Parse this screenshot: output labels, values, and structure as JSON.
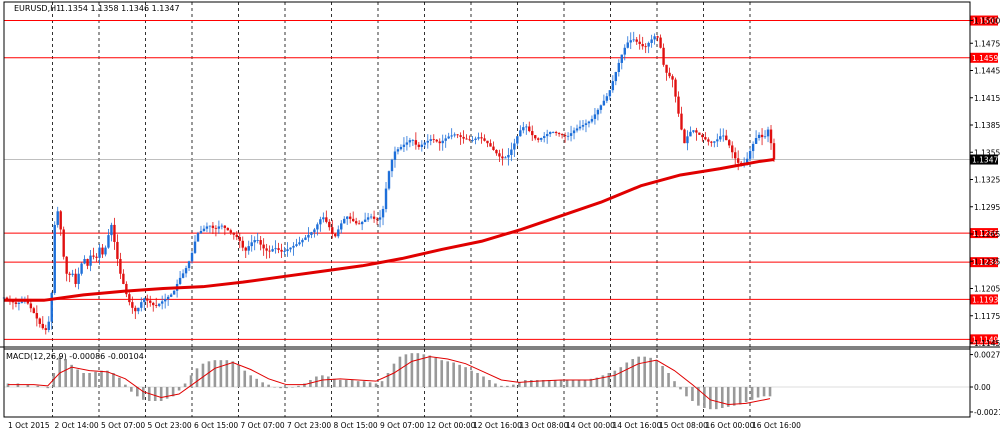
{
  "chart_data": [
    {
      "type": "candlestick",
      "title": "EURUSD,H1",
      "ohlc_label": "1.1354 1.1358 1.1346 1.1347",
      "ylim": [
        1.1145,
        1.1505
      ],
      "price_ticks": [
        "1.1500",
        "1.1475",
        "1.1445",
        "1.1415",
        "1.1385",
        "1.1355",
        "1.1325",
        "1.1295",
        "1.1265",
        "1.1235",
        "1.1205",
        "1.1175",
        "1.1145"
      ],
      "horizontal_levels": [
        "1.1500",
        "1.1459",
        "1.1266",
        "1.1234",
        "1.1193",
        "1.1149"
      ],
      "current_price": "1.1347",
      "x_labels": [
        "1 Oct 2015",
        "2 Oct 14:00",
        "5 Oct 07:00",
        "5 Oct 23:00",
        "6 Oct 15:00",
        "7 Oct 07:00",
        "7 Oct 23:00",
        "8 Oct 15:00",
        "9 Oct 07:00",
        "12 Oct 00:00",
        "12 Oct 16:00",
        "13 Oct 08:00",
        "14 Oct 00:00",
        "14 Oct 16:00",
        "15 Oct 08:00",
        "16 Oct 00:00",
        "16 Oct 16:00"
      ],
      "close_path": [
        [
          0,
          1.1195
        ],
        [
          12,
          1.1188
        ],
        [
          22,
          1.1192
        ],
        [
          30,
          1.1178
        ],
        [
          38,
          1.1162
        ],
        [
          44,
          1.1158
        ],
        [
          48,
          1.12
        ],
        [
          52,
          1.13
        ],
        [
          56,
          1.128
        ],
        [
          60,
          1.124
        ],
        [
          64,
          1.1215
        ],
        [
          68,
          1.1225
        ],
        [
          72,
          1.121
        ],
        [
          76,
          1.1225
        ],
        [
          80,
          1.124
        ],
        [
          84,
          1.123
        ],
        [
          88,
          1.1245
        ],
        [
          92,
          1.1235
        ],
        [
          96,
          1.125
        ],
        [
          100,
          1.124
        ],
        [
          104,
          1.126
        ],
        [
          108,
          1.1275
        ],
        [
          112,
          1.125
        ],
        [
          116,
          1.1225
        ],
        [
          120,
          1.121
        ],
        [
          124,
          1.1195
        ],
        [
          128,
          1.1185
        ],
        [
          132,
          1.118
        ],
        [
          136,
          1.1185
        ],
        [
          140,
          1.1195
        ],
        [
          146,
          1.119
        ],
        [
          152,
          1.1185
        ],
        [
          158,
          1.119
        ],
        [
          164,
          1.1195
        ],
        [
          170,
          1.12
        ],
        [
          176,
          1.1215
        ],
        [
          182,
          1.1225
        ],
        [
          188,
          1.124
        ],
        [
          194,
          1.1265
        ],
        [
          200,
          1.127
        ],
        [
          206,
          1.1275
        ],
        [
          212,
          1.127
        ],
        [
          218,
          1.1275
        ],
        [
          224,
          1.127
        ],
        [
          230,
          1.1265
        ],
        [
          236,
          1.126
        ],
        [
          242,
          1.1245
        ],
        [
          248,
          1.1255
        ],
        [
          254,
          1.126
        ],
        [
          260,
          1.125
        ],
        [
          266,
          1.1245
        ],
        [
          272,
          1.125
        ],
        [
          280,
          1.1245
        ],
        [
          288,
          1.125
        ],
        [
          296,
          1.1255
        ],
        [
          304,
          1.1262
        ],
        [
          312,
          1.127
        ],
        [
          320,
          1.1285
        ],
        [
          326,
          1.1275
        ],
        [
          332,
          1.126
        ],
        [
          338,
          1.1275
        ],
        [
          344,
          1.1285
        ],
        [
          350,
          1.128
        ],
        [
          356,
          1.1275
        ],
        [
          362,
          1.128
        ],
        [
          368,
          1.1285
        ],
        [
          374,
          1.128
        ],
        [
          380,
          1.1285
        ],
        [
          386,
          1.133
        ],
        [
          392,
          1.1355
        ],
        [
          398,
          1.136
        ],
        [
          404,
          1.1365
        ],
        [
          410,
          1.137
        ],
        [
          416,
          1.136
        ],
        [
          422,
          1.1365
        ],
        [
          430,
          1.137
        ],
        [
          438,
          1.1365
        ],
        [
          446,
          1.1372
        ],
        [
          454,
          1.1375
        ],
        [
          462,
          1.137
        ],
        [
          470,
          1.1368
        ],
        [
          478,
          1.1372
        ],
        [
          486,
          1.1365
        ],
        [
          494,
          1.1355
        ],
        [
          500,
          1.1348
        ],
        [
          506,
          1.135
        ],
        [
          512,
          1.1362
        ],
        [
          518,
          1.1378
        ],
        [
          524,
          1.1385
        ],
        [
          530,
          1.1375
        ],
        [
          536,
          1.1368
        ],
        [
          542,
          1.1372
        ],
        [
          550,
          1.1378
        ],
        [
          558,
          1.1375
        ],
        [
          566,
          1.1372
        ],
        [
          574,
          1.138
        ],
        [
          582,
          1.1385
        ],
        [
          590,
          1.139
        ],
        [
          596,
          1.14
        ],
        [
          602,
          1.141
        ],
        [
          608,
          1.142
        ],
        [
          614,
          1.144
        ],
        [
          620,
          1.146
        ],
        [
          626,
          1.1475
        ],
        [
          632,
          1.148
        ],
        [
          638,
          1.1475
        ],
        [
          644,
          1.147
        ],
        [
          650,
          1.1478
        ],
        [
          656,
          1.1485
        ],
        [
          660,
          1.147
        ],
        [
          664,
          1.1445
        ],
        [
          668,
          1.144
        ],
        [
          672,
          1.1435
        ],
        [
          676,
          1.141
        ],
        [
          680,
          1.1385
        ],
        [
          684,
          1.1365
        ],
        [
          688,
          1.1375
        ],
        [
          692,
          1.138
        ],
        [
          698,
          1.1375
        ],
        [
          704,
          1.137
        ],
        [
          710,
          1.1365
        ],
        [
          716,
          1.1368
        ],
        [
          722,
          1.1375
        ],
        [
          728,
          1.1365
        ],
        [
          734,
          1.135
        ],
        [
          740,
          1.134
        ],
        [
          746,
          1.1345
        ],
        [
          752,
          1.1362
        ],
        [
          758,
          1.1375
        ],
        [
          764,
          1.137
        ],
        [
          768,
          1.138
        ],
        [
          772,
          1.136
        ],
        [
          774,
          1.1347
        ]
      ],
      "moving_average": [
        [
          0,
          1.1192
        ],
        [
          40,
          1.1192
        ],
        [
          80,
          1.1198
        ],
        [
          120,
          1.1202
        ],
        [
          160,
          1.1205
        ],
        [
          200,
          1.1207
        ],
        [
          240,
          1.1212
        ],
        [
          280,
          1.1218
        ],
        [
          320,
          1.1224
        ],
        [
          360,
          1.123
        ],
        [
          400,
          1.1238
        ],
        [
          440,
          1.1248
        ],
        [
          480,
          1.1257
        ],
        [
          520,
          1.127
        ],
        [
          560,
          1.1285
        ],
        [
          600,
          1.13
        ],
        [
          640,
          1.1318
        ],
        [
          680,
          1.133
        ],
        [
          720,
          1.1337
        ],
        [
          760,
          1.1345
        ],
        [
          774,
          1.1347
        ]
      ]
    },
    {
      "type": "histogram",
      "title": "MACD(12,26,9) -0.00086 -0.00104",
      "ylim": [
        -0.0024,
        0.003
      ],
      "y_ticks": [
        "0.00278",
        "0.00",
        "-0.00214"
      ],
      "histogram": [
        [
          4,
          0.0003
        ],
        [
          14,
          0.0003
        ],
        [
          24,
          0.0002
        ],
        [
          34,
          0.0001
        ],
        [
          44,
          -0.0001
        ],
        [
          50,
          0.0012
        ],
        [
          56,
          0.0026
        ],
        [
          62,
          0.0024
        ],
        [
          68,
          0.0019
        ],
        [
          74,
          0.0015
        ],
        [
          80,
          0.0012
        ],
        [
          86,
          0.0012
        ],
        [
          92,
          0.0013
        ],
        [
          98,
          0.0014
        ],
        [
          104,
          0.0014
        ],
        [
          110,
          0.0012
        ],
        [
          116,
          0.0008
        ],
        [
          122,
          0.0002
        ],
        [
          128,
          -0.0004
        ],
        [
          134,
          -0.0008
        ],
        [
          140,
          -0.0011
        ],
        [
          146,
          -0.0012
        ],
        [
          152,
          -0.0012
        ],
        [
          158,
          -0.0012
        ],
        [
          164,
          -0.001
        ],
        [
          170,
          -0.0008
        ],
        [
          176,
          -0.0003
        ],
        [
          182,
          0.0003
        ],
        [
          188,
          0.001
        ],
        [
          194,
          0.0016
        ],
        [
          200,
          0.002
        ],
        [
          206,
          0.0022
        ],
        [
          212,
          0.0023
        ],
        [
          218,
          0.0023
        ],
        [
          224,
          0.0023
        ],
        [
          230,
          0.0022
        ],
        [
          236,
          0.0019
        ],
        [
          242,
          0.0014
        ],
        [
          248,
          0.001
        ],
        [
          254,
          0.0007
        ],
        [
          260,
          0.0004
        ],
        [
          266,
          0.0002
        ],
        [
          272,
          0.0
        ],
        [
          278,
          -0.0001
        ],
        [
          284,
          -0.0001
        ],
        [
          290,
          0.0
        ],
        [
          296,
          0.0001
        ],
        [
          302,
          0.0003
        ],
        [
          308,
          0.0006
        ],
        [
          314,
          0.0009
        ],
        [
          320,
          0.001
        ],
        [
          326,
          0.0009
        ],
        [
          332,
          0.0007
        ],
        [
          338,
          0.0006
        ],
        [
          344,
          0.0006
        ],
        [
          350,
          0.0006
        ],
        [
          356,
          0.0005
        ],
        [
          362,
          0.0005
        ],
        [
          368,
          0.0004
        ],
        [
          374,
          0.0003
        ],
        [
          380,
          0.0005
        ],
        [
          386,
          0.0012
        ],
        [
          392,
          0.002
        ],
        [
          398,
          0.0026
        ],
        [
          404,
          0.0028
        ],
        [
          410,
          0.0029
        ],
        [
          416,
          0.0029
        ],
        [
          422,
          0.0028
        ],
        [
          428,
          0.0027
        ],
        [
          434,
          0.0025
        ],
        [
          440,
          0.0023
        ],
        [
          446,
          0.0022
        ],
        [
          452,
          0.0021
        ],
        [
          458,
          0.0019
        ],
        [
          464,
          0.0017
        ],
        [
          470,
          0.0014
        ],
        [
          476,
          0.0012
        ],
        [
          482,
          0.0009
        ],
        [
          488,
          0.0006
        ],
        [
          494,
          0.0003
        ],
        [
          500,
          0.0001
        ],
        [
          506,
          0.0001
        ],
        [
          512,
          0.0002
        ],
        [
          518,
          0.0004
        ],
        [
          524,
          0.0006
        ],
        [
          530,
          0.0006
        ],
        [
          536,
          0.0006
        ],
        [
          542,
          0.0006
        ],
        [
          548,
          0.0006
        ],
        [
          554,
          0.0006
        ],
        [
          560,
          0.0006
        ],
        [
          566,
          0.0006
        ],
        [
          572,
          0.0006
        ],
        [
          578,
          0.0006
        ],
        [
          584,
          0.0006
        ],
        [
          590,
          0.0007
        ],
        [
          596,
          0.0008
        ],
        [
          602,
          0.001
        ],
        [
          608,
          0.0012
        ],
        [
          614,
          0.0014
        ],
        [
          620,
          0.0017
        ],
        [
          626,
          0.0021
        ],
        [
          632,
          0.0024
        ],
        [
          638,
          0.0026
        ],
        [
          644,
          0.0026
        ],
        [
          650,
          0.0025
        ],
        [
          656,
          0.0023
        ],
        [
          662,
          0.0018
        ],
        [
          668,
          0.0012
        ],
        [
          674,
          0.0005
        ],
        [
          680,
          -0.0002
        ],
        [
          686,
          -0.0008
        ],
        [
          692,
          -0.0012
        ],
        [
          698,
          -0.0016
        ],
        [
          704,
          -0.0018
        ],
        [
          710,
          -0.0019
        ],
        [
          716,
          -0.0019
        ],
        [
          722,
          -0.0018
        ],
        [
          728,
          -0.0017
        ],
        [
          734,
          -0.0016
        ],
        [
          740,
          -0.0015
        ],
        [
          746,
          -0.0013
        ],
        [
          752,
          -0.0011
        ],
        [
          758,
          -0.0009
        ],
        [
          764,
          -0.0008
        ],
        [
          770,
          -0.0008
        ]
      ],
      "signal": [
        [
          4,
          0.0002
        ],
        [
          30,
          0.0002
        ],
        [
          44,
          0.0001
        ],
        [
          56,
          0.0012
        ],
        [
          68,
          0.0017
        ],
        [
          86,
          0.0014
        ],
        [
          104,
          0.0013
        ],
        [
          122,
          0.0007
        ],
        [
          140,
          -0.0004
        ],
        [
          158,
          -0.0009
        ],
        [
          176,
          -0.0006
        ],
        [
          194,
          0.0005
        ],
        [
          212,
          0.0016
        ],
        [
          230,
          0.0021
        ],
        [
          248,
          0.0015
        ],
        [
          266,
          0.0007
        ],
        [
          284,
          0.0002
        ],
        [
          302,
          0.0002
        ],
        [
          320,
          0.0006
        ],
        [
          338,
          0.0007
        ],
        [
          356,
          0.0006
        ],
        [
          374,
          0.0005
        ],
        [
          392,
          0.0012
        ],
        [
          410,
          0.0022
        ],
        [
          428,
          0.0026
        ],
        [
          446,
          0.0024
        ],
        [
          464,
          0.002
        ],
        [
          482,
          0.0013
        ],
        [
          500,
          0.0006
        ],
        [
          518,
          0.0004
        ],
        [
          536,
          0.0005
        ],
        [
          560,
          0.0006
        ],
        [
          590,
          0.0006
        ],
        [
          614,
          0.001
        ],
        [
          638,
          0.002
        ],
        [
          656,
          0.0023
        ],
        [
          674,
          0.0014
        ],
        [
          692,
          0.0002
        ],
        [
          710,
          -0.0011
        ],
        [
          728,
          -0.0015
        ],
        [
          746,
          -0.0014
        ],
        [
          764,
          -0.0011
        ],
        [
          770,
          -0.001
        ]
      ]
    }
  ]
}
